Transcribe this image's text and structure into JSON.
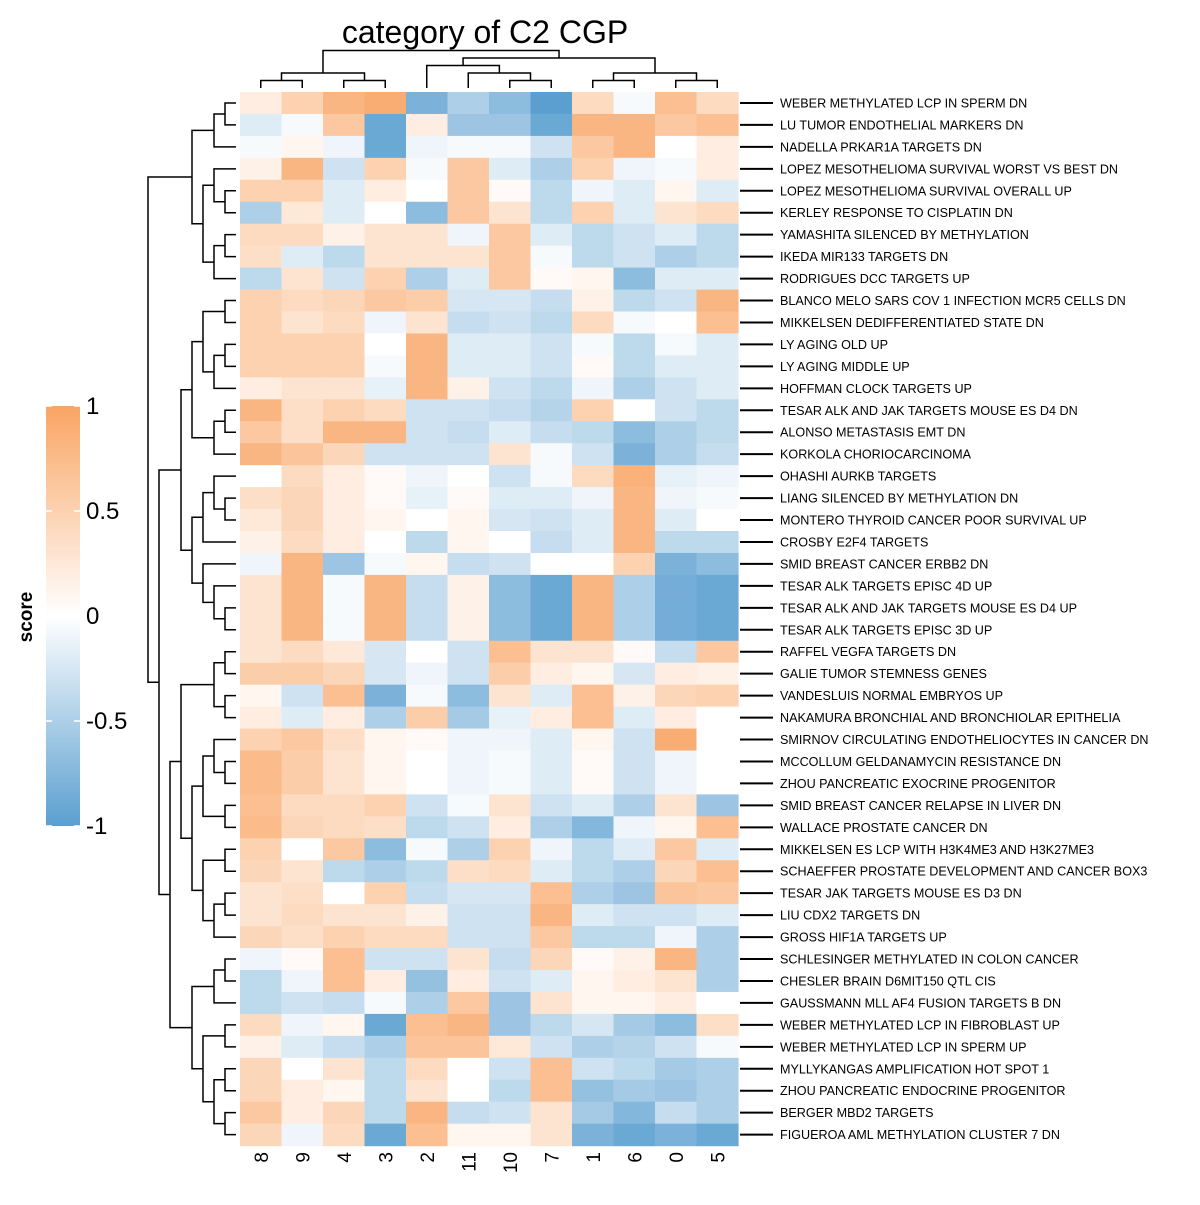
{
  "chart_data": {
    "type": "heatmap",
    "title": "category of C2 CGP",
    "legend": {
      "title": "score",
      "ticks": [
        "1",
        "0.5",
        "0",
        "-0.5",
        "-1"
      ],
      "range": [
        -1,
        1
      ],
      "placement": "left",
      "colors": {
        "low": "#5b9fd0",
        "mid": "#ffffff",
        "high": "#f9a463"
      }
    },
    "columns": [
      "8",
      "9",
      "4",
      "3",
      "2",
      "11",
      "10",
      "7",
      "1",
      "6",
      "0",
      "5"
    ],
    "rows": [
      "WEBER METHYLATED LCP IN SPERM DN",
      "LU TUMOR ENDOTHELIAL MARKERS DN",
      "NADELLA PRKAR1A TARGETS DN",
      "LOPEZ MESOTHELIOMA SURVIVAL WORST VS BEST DN",
      "LOPEZ MESOTHELIOMA SURVIVAL OVERALL UP",
      "KERLEY RESPONSE TO CISPLATIN DN",
      "YAMASHITA SILENCED BY METHYLATION",
      "IKEDA MIR133 TARGETS DN",
      "RODRIGUES DCC TARGETS UP",
      "BLANCO MELO SARS COV 1 INFECTION MCR5 CELLS DN",
      "MIKKELSEN DEDIFFERENTIATED STATE DN",
      "LY AGING OLD UP",
      "LY AGING MIDDLE UP",
      "HOFFMAN CLOCK TARGETS UP",
      "TESAR ALK AND JAK TARGETS MOUSE ES D4 DN",
      "ALONSO METASTASIS EMT DN",
      "KORKOLA CHORIOCARCINOMA",
      "OHASHI AURKB TARGETS",
      "LIANG SILENCED BY METHYLATION DN",
      "MONTERO THYROID CANCER POOR SURVIVAL UP",
      "CROSBY E2F4 TARGETS",
      "SMID BREAST CANCER ERBB2 DN",
      "TESAR ALK TARGETS EPISC 4D UP",
      "TESAR ALK AND JAK TARGETS MOUSE ES D4 UP",
      "TESAR ALK TARGETS EPISC 3D UP",
      "RAFFEL VEGFA TARGETS DN",
      "GALIE TUMOR STEMNESS GENES",
      "VANDESLUIS NORMAL EMBRYOS UP",
      "NAKAMURA BRONCHIAL AND BRONCHIOLAR EPITHELIA",
      "SMIRNOV CIRCULATING ENDOTHELIOCYTES IN CANCER DN",
      "MCCOLLUM GELDANAMYCIN RESISTANCE DN",
      "ZHOU PANCREATIC EXOCRINE PROGENITOR",
      "SMID BREAST CANCER RELAPSE IN LIVER DN",
      "WALLACE PROSTATE CANCER DN",
      "MIKKELSEN ES LCP WITH H3K4ME3 AND H3K27ME3",
      "SCHAEFFER PROSTATE DEVELOPMENT AND CANCER BOX3",
      "TESAR JAK TARGETS MOUSE ES D3 DN",
      "LIU CDX2 TARGETS DN",
      "GROSS HIF1A TARGETS UP",
      "SCHLESINGER METHYLATED IN COLON CANCER",
      "CHESLER BRAIN D6MIT150 QTL CIS",
      "GAUSSMANN MLL AF4 FUSION TARGETS B DN",
      "WEBER METHYLATED LCP IN FIBROBLAST UP",
      "WEBER METHYLATED LCP IN SPERM UP",
      "MYLLYKANGAS AMPLIFICATION HOT SPOT 1",
      "ZHOU PANCREATIC ENDOCRINE PROGENITOR",
      "BERGER MBD2 TARGETS",
      "FIGUEROA AML METHYLATION CLUSTER 7 DN"
    ],
    "values": [
      [
        0.2,
        0.5,
        0.8,
        0.9,
        -0.8,
        -0.5,
        -0.7,
        -1.0,
        0.4,
        -0.05,
        0.7,
        0.4
      ],
      [
        -0.2,
        -0.05,
        0.6,
        -0.9,
        0.2,
        -0.6,
        -0.6,
        -0.9,
        0.8,
        0.8,
        0.6,
        0.7
      ],
      [
        -0.05,
        0.1,
        -0.1,
        -0.9,
        -0.1,
        -0.05,
        -0.05,
        -0.3,
        0.6,
        0.8,
        0.0,
        0.2
      ],
      [
        0.15,
        0.8,
        -0.3,
        0.5,
        -0.05,
        0.6,
        -0.2,
        -0.5,
        0.5,
        -0.1,
        -0.05,
        0.2
      ],
      [
        0.5,
        0.5,
        -0.2,
        0.2,
        0.0,
        0.6,
        0.05,
        -0.4,
        -0.1,
        -0.2,
        0.1,
        -0.2
      ],
      [
        -0.5,
        0.25,
        -0.2,
        0.0,
        -0.7,
        0.6,
        0.3,
        -0.4,
        0.5,
        -0.2,
        0.3,
        0.4
      ],
      [
        0.4,
        0.4,
        0.15,
        0.3,
        0.3,
        -0.1,
        0.6,
        -0.2,
        -0.4,
        -0.3,
        -0.2,
        -0.4
      ],
      [
        0.35,
        -0.2,
        -0.4,
        0.3,
        0.3,
        0.3,
        0.6,
        -0.05,
        -0.4,
        -0.3,
        -0.5,
        -0.4
      ],
      [
        -0.4,
        0.3,
        -0.3,
        0.5,
        -0.5,
        -0.2,
        0.6,
        0.05,
        0.1,
        -0.7,
        -0.2,
        -0.2
      ],
      [
        0.5,
        0.4,
        0.45,
        0.6,
        0.55,
        -0.25,
        -0.25,
        -0.35,
        0.15,
        -0.4,
        -0.3,
        0.8
      ],
      [
        0.5,
        0.3,
        0.4,
        -0.1,
        0.3,
        -0.35,
        -0.3,
        -0.4,
        0.4,
        -0.05,
        0.0,
        0.7
      ],
      [
        0.5,
        0.5,
        0.5,
        0.0,
        0.8,
        -0.2,
        -0.2,
        -0.3,
        -0.05,
        -0.4,
        -0.05,
        -0.2
      ],
      [
        0.5,
        0.5,
        0.5,
        -0.05,
        0.8,
        -0.2,
        -0.2,
        -0.3,
        0.05,
        -0.4,
        -0.2,
        -0.2
      ],
      [
        0.2,
        0.3,
        0.3,
        -0.15,
        0.8,
        0.15,
        -0.3,
        -0.4,
        -0.1,
        -0.5,
        -0.3,
        -0.2
      ],
      [
        0.8,
        0.35,
        0.5,
        0.4,
        -0.3,
        -0.3,
        -0.35,
        -0.45,
        0.5,
        0.0,
        -0.3,
        -0.4
      ],
      [
        0.6,
        0.35,
        0.8,
        0.8,
        -0.3,
        -0.35,
        -0.2,
        -0.35,
        -0.4,
        -0.7,
        -0.5,
        -0.4
      ],
      [
        0.8,
        0.65,
        0.45,
        -0.3,
        -0.3,
        -0.3,
        0.3,
        -0.05,
        -0.3,
        -0.8,
        -0.5,
        -0.35
      ],
      [
        0.0,
        0.4,
        0.2,
        0.05,
        -0.1,
        0.0,
        -0.3,
        -0.05,
        0.4,
        0.85,
        -0.15,
        -0.1
      ],
      [
        0.35,
        0.45,
        0.2,
        0.05,
        -0.15,
        0.05,
        -0.2,
        -0.2,
        -0.1,
        0.8,
        -0.1,
        -0.05
      ],
      [
        0.25,
        0.45,
        0.2,
        0.1,
        0.0,
        0.1,
        -0.25,
        -0.3,
        -0.2,
        0.8,
        -0.2,
        0.0
      ],
      [
        0.15,
        0.4,
        0.2,
        0.0,
        -0.4,
        0.1,
        0.0,
        -0.35,
        -0.2,
        0.8,
        -0.4,
        -0.4
      ],
      [
        -0.1,
        0.8,
        -0.6,
        -0.05,
        0.1,
        -0.35,
        -0.3,
        0.0,
        0.0,
        0.5,
        -0.8,
        -0.7
      ],
      [
        0.3,
        0.8,
        -0.05,
        0.8,
        -0.35,
        0.15,
        -0.7,
        -0.9,
        0.8,
        -0.5,
        -0.85,
        -0.9
      ],
      [
        0.3,
        0.8,
        -0.05,
        0.8,
        -0.35,
        0.15,
        -0.7,
        -0.9,
        0.8,
        -0.5,
        -0.85,
        -0.9
      ],
      [
        0.3,
        0.8,
        -0.05,
        0.8,
        -0.35,
        0.15,
        -0.7,
        -0.9,
        0.8,
        -0.5,
        -0.85,
        -0.9
      ],
      [
        0.3,
        0.4,
        0.25,
        -0.25,
        0.0,
        -0.3,
        0.7,
        0.3,
        0.3,
        0.05,
        -0.35,
        0.6
      ],
      [
        0.55,
        0.55,
        0.45,
        -0.25,
        -0.1,
        -0.3,
        0.55,
        0.2,
        0.1,
        -0.25,
        0.2,
        0.15
      ],
      [
        0.1,
        -0.3,
        0.7,
        -0.8,
        -0.05,
        -0.7,
        0.3,
        -0.2,
        0.7,
        0.15,
        0.45,
        0.5
      ],
      [
        0.2,
        -0.2,
        0.2,
        -0.5,
        0.55,
        -0.55,
        -0.15,
        0.2,
        0.7,
        -0.2,
        0.2,
        0.0
      ],
      [
        0.5,
        0.6,
        0.35,
        0.1,
        0.05,
        -0.1,
        -0.1,
        -0.2,
        0.1,
        -0.3,
        0.9,
        0.0
      ],
      [
        0.75,
        0.55,
        0.3,
        0.1,
        0.0,
        -0.1,
        -0.05,
        -0.2,
        0.05,
        -0.3,
        -0.1,
        0.0
      ],
      [
        0.75,
        0.55,
        0.3,
        0.1,
        0.0,
        -0.1,
        -0.05,
        -0.2,
        0.05,
        -0.3,
        -0.1,
        0.0
      ],
      [
        0.7,
        0.4,
        0.4,
        0.5,
        -0.3,
        -0.05,
        0.3,
        -0.3,
        -0.2,
        -0.5,
        0.3,
        -0.6
      ],
      [
        0.75,
        0.45,
        0.4,
        0.35,
        -0.4,
        -0.3,
        0.2,
        -0.5,
        -0.75,
        -0.1,
        0.1,
        0.7
      ],
      [
        0.5,
        0.0,
        0.6,
        -0.7,
        -0.05,
        -0.5,
        0.5,
        -0.1,
        -0.4,
        -0.2,
        0.6,
        -0.2
      ],
      [
        0.45,
        0.3,
        -0.4,
        -0.5,
        -0.4,
        0.35,
        0.4,
        -0.2,
        -0.4,
        -0.5,
        0.45,
        0.7
      ],
      [
        0.3,
        0.35,
        0.0,
        0.5,
        -0.35,
        -0.25,
        -0.25,
        0.7,
        -0.5,
        -0.6,
        0.65,
        0.6
      ],
      [
        0.3,
        0.4,
        0.3,
        0.3,
        0.15,
        -0.3,
        -0.3,
        0.8,
        -0.2,
        -0.3,
        -0.3,
        -0.2
      ],
      [
        0.45,
        0.35,
        0.5,
        0.4,
        0.4,
        -0.3,
        -0.3,
        0.6,
        -0.4,
        -0.4,
        -0.1,
        -0.5
      ],
      [
        -0.1,
        0.05,
        0.7,
        -0.3,
        -0.3,
        0.3,
        -0.35,
        0.45,
        0.05,
        0.15,
        0.8,
        -0.5
      ],
      [
        -0.4,
        -0.1,
        0.7,
        0.2,
        -0.65,
        0.2,
        -0.3,
        -0.2,
        0.1,
        0.2,
        0.3,
        -0.5
      ],
      [
        -0.4,
        -0.3,
        -0.35,
        -0.05,
        -0.5,
        0.6,
        -0.6,
        0.3,
        0.1,
        0.1,
        0.2,
        0.0
      ],
      [
        0.4,
        -0.1,
        0.1,
        -0.9,
        0.7,
        0.8,
        -0.6,
        -0.4,
        -0.25,
        -0.55,
        -0.7,
        0.35
      ],
      [
        0.15,
        -0.2,
        -0.35,
        -0.5,
        0.65,
        0.65,
        0.25,
        -0.3,
        -0.5,
        -0.45,
        -0.3,
        -0.05
      ],
      [
        0.45,
        0.0,
        0.3,
        -0.4,
        0.4,
        0.0,
        -0.3,
        0.7,
        -0.3,
        -0.4,
        -0.55,
        -0.5
      ],
      [
        0.45,
        0.2,
        0.1,
        -0.4,
        0.3,
        0.0,
        -0.4,
        0.7,
        -0.65,
        -0.55,
        -0.6,
        -0.5
      ],
      [
        0.6,
        0.2,
        0.45,
        -0.4,
        0.8,
        -0.35,
        -0.3,
        0.3,
        -0.55,
        -0.75,
        -0.35,
        -0.5
      ],
      [
        0.45,
        -0.1,
        0.4,
        -0.9,
        0.7,
        0.1,
        0.1,
        0.3,
        -0.8,
        -0.9,
        -0.8,
        -0.9
      ]
    ]
  }
}
